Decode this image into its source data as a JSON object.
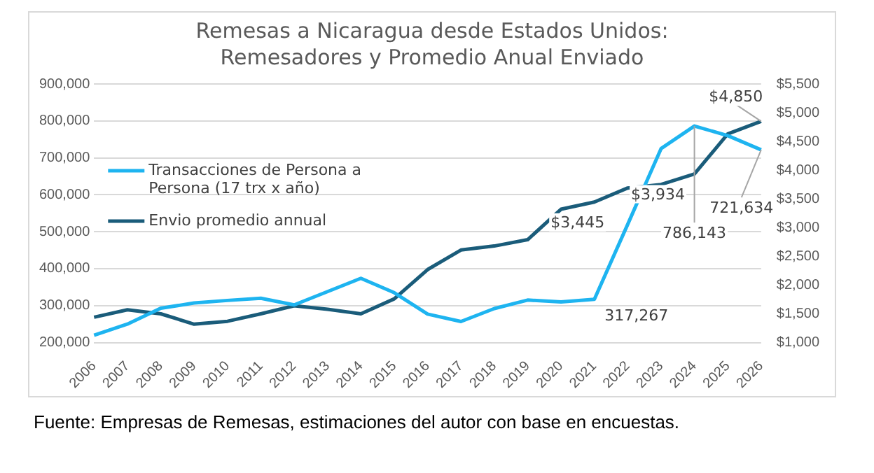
{
  "chart_data": {
    "type": "line",
    "title": "Remesas a Nicaragua desde Estados Unidos: Remesadores y Promedio Anual Enviado",
    "categories": [
      "2006",
      "2007",
      "2008",
      "2009",
      "2010",
      "2011",
      "2012",
      "2013",
      "2014",
      "2015",
      "2016",
      "2017",
      "2018",
      "2019",
      "2020",
      "2021",
      "2022",
      "2023",
      "2024",
      "2025",
      "2026"
    ],
    "series": [
      {
        "name": "Transacciones de Persona a Persona (17 trx x año)",
        "color": "#1eb4f0",
        "values": [
          220000,
          250000,
          293000,
          307000,
          314000,
          320000,
          302000,
          338000,
          374000,
          335000,
          277000,
          257000,
          292000,
          315000,
          310000,
          317267,
          520000,
          725000,
          786143,
          760000,
          721634
        ],
        "value_labels": [
          null,
          null,
          null,
          null,
          null,
          null,
          null,
          null,
          null,
          null,
          null,
          null,
          null,
          null,
          null,
          "317,267",
          null,
          null,
          "786,143",
          null,
          "721,634"
        ]
      },
      {
        "name": "Envio promedio annual",
        "color": "#1a5c7a",
        "axis": "y2",
        "values": [
          1440,
          1570,
          1500,
          1320,
          1370,
          1500,
          1640,
          1580,
          1500,
          1760,
          2270,
          2610,
          2680,
          2790,
          3320,
          3445,
          3690,
          3750,
          3934,
          4630,
          4850
        ],
        "value_labels": [
          null,
          null,
          null,
          null,
          null,
          null,
          null,
          null,
          null,
          null,
          null,
          null,
          null,
          null,
          null,
          "$3,445",
          null,
          null,
          "$3,934",
          null,
          "$4,850"
        ]
      }
    ],
    "ylim": [
      200000,
      900000
    ],
    "yticks": [
      {
        "value": 200000,
        "label": "200,000"
      },
      {
        "value": 300000,
        "label": "300,000"
      },
      {
        "value": 400000,
        "label": "400,000"
      },
      {
        "value": 500000,
        "label": "500,000"
      },
      {
        "value": 600000,
        "label": "600,000"
      },
      {
        "value": 700000,
        "label": "700,000"
      },
      {
        "value": 800000,
        "label": "800,000"
      },
      {
        "value": 900000,
        "label": "900,000"
      }
    ],
    "y2lim": [
      1000,
      5500
    ],
    "y2ticks": [
      {
        "value": 1000,
        "label": "$1,000"
      },
      {
        "value": 1500,
        "label": "$1,500"
      },
      {
        "value": 2000,
        "label": "$2,000"
      },
      {
        "value": 2500,
        "label": "$2,500"
      },
      {
        "value": 3000,
        "label": "$3,000"
      },
      {
        "value": 3500,
        "label": "$3,500"
      },
      {
        "value": 4000,
        "label": "$4,000"
      },
      {
        "value": 4500,
        "label": "$4,500"
      },
      {
        "value": 5000,
        "label": "$5,000"
      },
      {
        "value": 5500,
        "label": "$5,500"
      }
    ],
    "grid": "y",
    "legend": "top left",
    "marker": "none",
    "line_style": "solid",
    "annotations": [
      "Fuente: Empresas de Remesas, estimaciones del autor con base en encuestas."
    ]
  }
}
